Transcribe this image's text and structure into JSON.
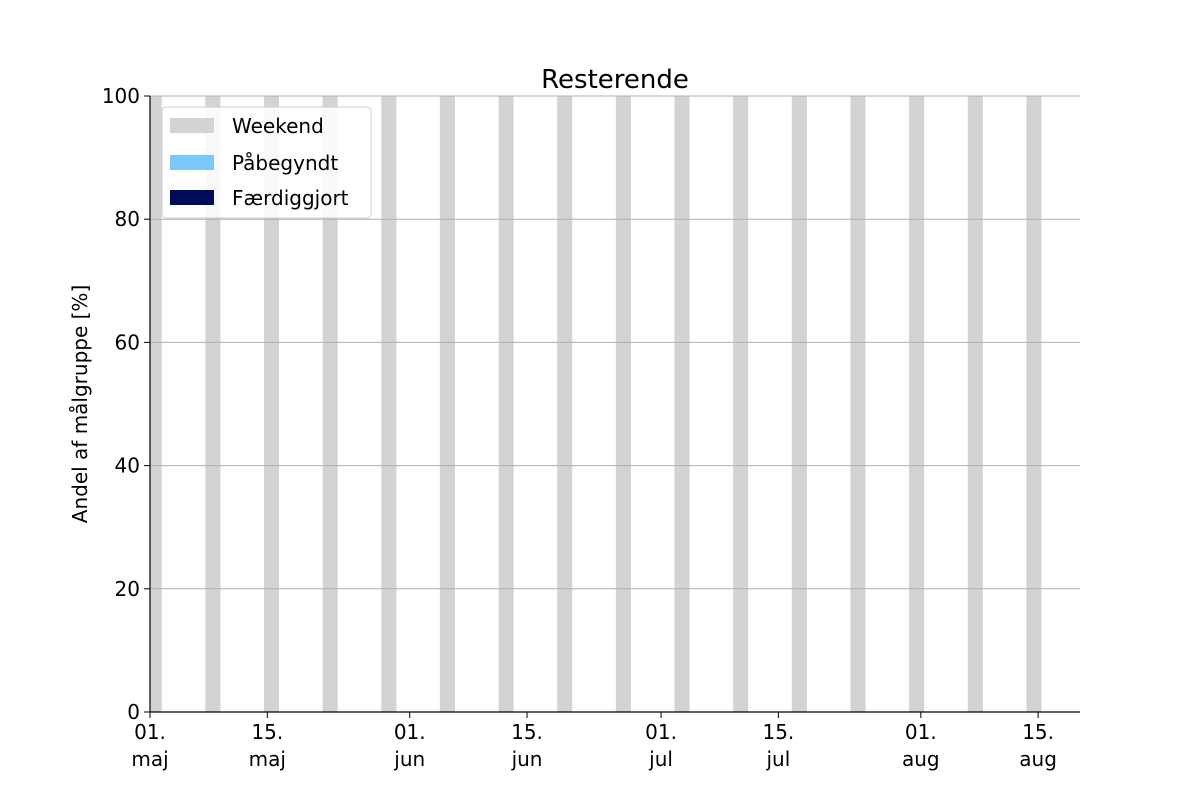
{
  "chart_data": {
    "type": "bar",
    "title": "Resterende",
    "ylabel": "Andel af målgruppe [%]",
    "xlabel": "",
    "ylim": [
      0,
      100
    ],
    "xlim": [
      "2021-05-01",
      "2021-08-20"
    ],
    "y_ticks": [
      0,
      20,
      40,
      60,
      80,
      100
    ],
    "x_ticks": [
      {
        "date": "2021-05-01",
        "line1": "01.",
        "line2": "maj"
      },
      {
        "date": "2021-05-15",
        "line1": "15.",
        "line2": "maj"
      },
      {
        "date": "2021-06-01",
        "line1": "01.",
        "line2": "jun"
      },
      {
        "date": "2021-06-15",
        "line1": "15.",
        "line2": "jun"
      },
      {
        "date": "2021-07-01",
        "line1": "01.",
        "line2": "jul"
      },
      {
        "date": "2021-07-15",
        "line1": "15.",
        "line2": "jul"
      },
      {
        "date": "2021-08-01",
        "line1": "01.",
        "line2": "aug"
      },
      {
        "date": "2021-08-15",
        "line1": "15.",
        "line2": "aug"
      }
    ],
    "grid": "horizontal",
    "legend_position": "top-left",
    "series": [
      {
        "name": "Weekend",
        "color": "#d3d3d3",
        "weekend_dates": [
          "2021-05-01",
          "2021-05-08",
          "2021-05-15",
          "2021-05-22",
          "2021-05-29",
          "2021-06-05",
          "2021-06-12",
          "2021-06-19",
          "2021-06-26",
          "2021-07-03",
          "2021-07-10",
          "2021-07-17",
          "2021-07-24",
          "2021-07-31",
          "2021-08-07",
          "2021-08-14"
        ],
        "values": [
          100,
          100,
          100,
          100,
          100,
          100,
          100,
          100,
          100,
          100,
          100,
          100,
          100,
          100,
          100,
          100
        ]
      },
      {
        "name": "Påbegyndt",
        "color": "#7cc8f8",
        "values": []
      },
      {
        "name": "Færdiggjort",
        "color": "#000c5a",
        "values": []
      }
    ]
  }
}
